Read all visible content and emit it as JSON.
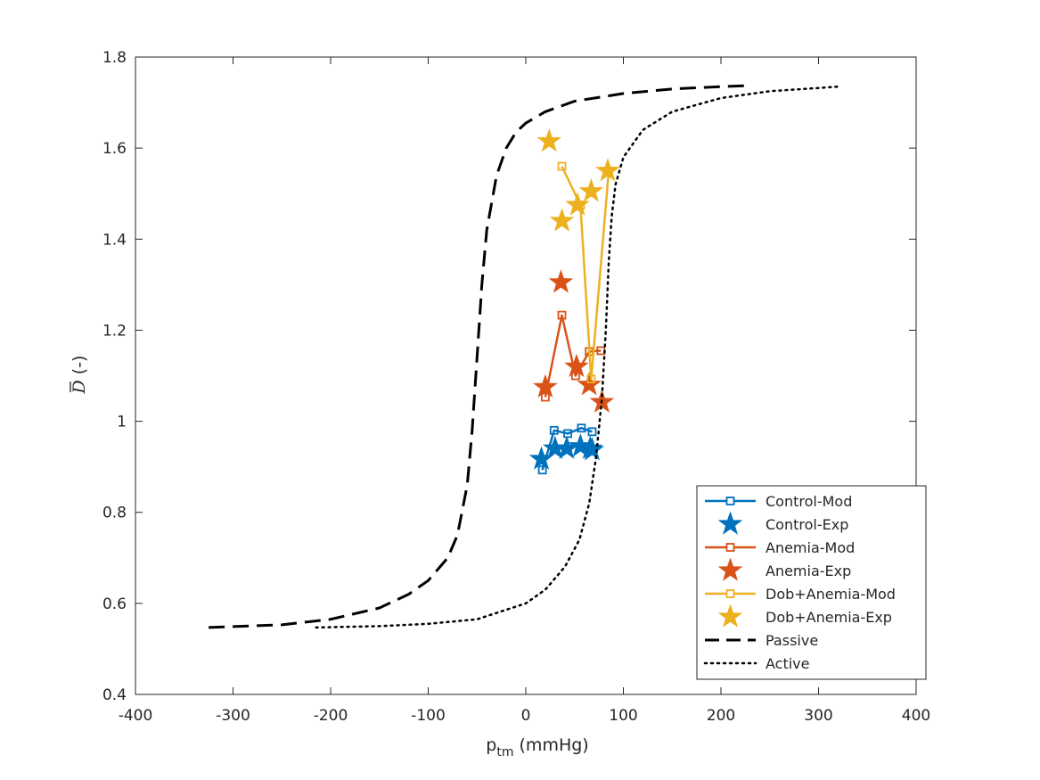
{
  "chart_data": {
    "type": "line",
    "xlabel_main": "p",
    "xlabel_sub": "tm",
    "xlabel_unit": " (mmHg)",
    "ylabel_symbol": "D",
    "ylabel_unit": " (-)",
    "xlim": [
      -400,
      400
    ],
    "ylim": [
      0.4,
      1.8
    ],
    "xticks": [
      -400,
      -300,
      -200,
      -100,
      0,
      100,
      200,
      300,
      400
    ],
    "yticks": [
      0.4,
      0.6,
      0.8,
      1,
      1.2,
      1.4,
      1.6,
      1.8
    ],
    "xtick_labels": [
      "-400",
      "-300",
      "-200",
      "-100",
      "0",
      "100",
      "200",
      "300",
      "400"
    ],
    "ytick_labels": [
      "0.4",
      "0.6",
      "0.8",
      "1",
      "1.2",
      "1.4",
      "1.6",
      "1.8"
    ],
    "grid": false,
    "legend_position": "bottom-right",
    "series": [
      {
        "name": "Control-Mod",
        "color": "#0072BD",
        "style": "line-square",
        "x": [
          17,
          29,
          43,
          57,
          68
        ],
        "y": [
          0.893,
          0.98,
          0.973,
          0.985,
          0.977
        ]
      },
      {
        "name": "Control-Exp",
        "color": "#0072BD",
        "style": "star",
        "x": [
          16,
          30,
          42,
          56,
          66,
          68
        ],
        "y": [
          0.917,
          0.94,
          0.94,
          0.945,
          0.94,
          0.937
        ]
      },
      {
        "name": "Anemia-Mod",
        "color": "#D95319",
        "style": "line-square",
        "x": [
          20,
          37,
          51,
          65,
          77
        ],
        "y": [
          1.053,
          1.233,
          1.1,
          1.153,
          1.155
        ]
      },
      {
        "name": "Anemia-Exp",
        "color": "#D95319",
        "style": "star",
        "x": [
          20,
          36,
          52,
          65,
          78
        ],
        "y": [
          1.075,
          1.305,
          1.12,
          1.08,
          1.042
        ]
      },
      {
        "name": "Dob+Anemia-Mod",
        "color": "#EDB120",
        "style": "line-square",
        "x": [
          37,
          56,
          67,
          85
        ],
        "y": [
          1.56,
          1.475,
          1.093,
          1.55
        ]
      },
      {
        "name": "Dob+Anemia-Exp",
        "color": "#EDB120",
        "style": "star",
        "x": [
          24,
          37,
          53,
          67,
          84
        ],
        "y": [
          1.615,
          1.44,
          1.475,
          1.505,
          1.55
        ]
      },
      {
        "name": "Passive",
        "color": "#000000",
        "style": "dashed",
        "x": [
          -325,
          -250,
          -200,
          -150,
          -120,
          -100,
          -80,
          -70,
          -60,
          -55,
          -50,
          -45,
          -40,
          -30,
          -20,
          -10,
          0,
          20,
          50,
          100,
          150,
          200,
          225
        ],
        "y": [
          0.547,
          0.553,
          0.565,
          0.59,
          0.62,
          0.65,
          0.7,
          0.75,
          0.86,
          0.98,
          1.14,
          1.3,
          1.42,
          1.54,
          1.6,
          1.635,
          1.655,
          1.68,
          1.703,
          1.72,
          1.73,
          1.735,
          1.737
        ]
      },
      {
        "name": "Active",
        "color": "#000000",
        "style": "dotted",
        "x": [
          -215,
          -150,
          -100,
          -50,
          0,
          20,
          40,
          55,
          65,
          72,
          78,
          82,
          85,
          88,
          92,
          100,
          120,
          150,
          200,
          250,
          300,
          320
        ],
        "y": [
          0.547,
          0.55,
          0.555,
          0.565,
          0.6,
          0.63,
          0.68,
          0.74,
          0.82,
          0.92,
          1.05,
          1.2,
          1.35,
          1.45,
          1.52,
          1.58,
          1.64,
          1.68,
          1.71,
          1.725,
          1.732,
          1.735
        ]
      }
    ]
  }
}
